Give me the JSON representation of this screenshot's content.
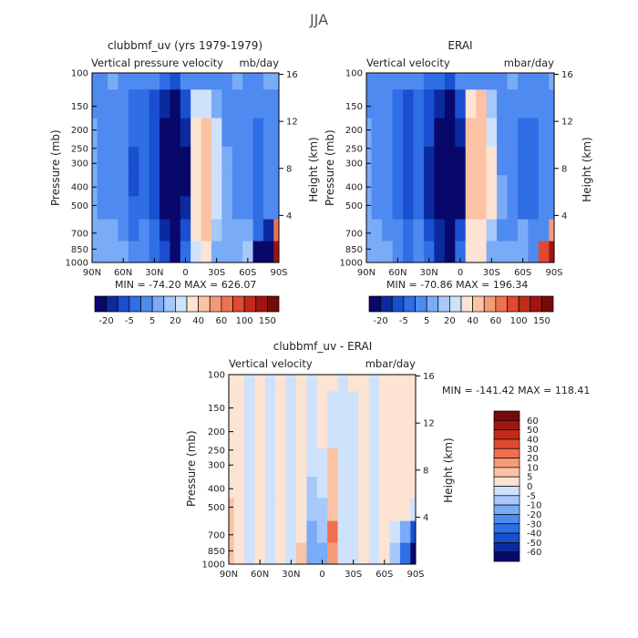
{
  "figure_title": "JJA",
  "panels": [
    {
      "title": "clubbmf_uv (yrs 1979-1979)",
      "subtitle_left": "Vertical pressure velocity",
      "subtitle_right": "mb/day",
      "minmax": "MIN = -74.20   MAX = 626.07"
    },
    {
      "title": "ERAI",
      "subtitle_left": "Vertical velocity",
      "subtitle_right": "mbar/day",
      "minmax": "MIN = -70.86   MAX = 196.34"
    },
    {
      "title": "clubbmf_uv - ERAI",
      "subtitle_left": "Vertical velocity",
      "subtitle_right": "mbar/day",
      "minmax": "MIN = -141.42   MAX = 118.41"
    }
  ],
  "axes": {
    "ylabel_left": "Pressure (mb)",
    "ylabel_right": "Height (km)",
    "pressure_ticks": [
      "100",
      "150",
      "200",
      "250",
      "300",
      "400",
      "500",
      "700",
      "850",
      "1000"
    ],
    "height_ticks": [
      "16",
      "12",
      "8",
      "4"
    ],
    "lat_ticks": [
      "90N",
      "60N",
      "30N",
      "0",
      "30S",
      "60S",
      "90S"
    ]
  },
  "colorbar_top": {
    "labels": [
      "-20",
      "-5",
      "5",
      "20",
      "40",
      "60",
      "100",
      "150"
    ],
    "colors": [
      "#08086b",
      "#0c2aa0",
      "#1a4fd0",
      "#2f6ee5",
      "#4f8af0",
      "#7aabf6",
      "#a6c8fa",
      "#cfe2fc",
      "#fde3d2",
      "#fbc2a4",
      "#f79a78",
      "#f0714f",
      "#e04a30",
      "#c42a1c",
      "#a0150f",
      "#750a08"
    ]
  },
  "colorbar_diff": {
    "labels": [
      "60",
      "50",
      "40",
      "30",
      "20",
      "10",
      "5",
      "0",
      "-5",
      "-10",
      "-20",
      "-30",
      "-40",
      "-50",
      "-60"
    ],
    "colors": [
      "#750a08",
      "#a0150f",
      "#c42a1c",
      "#e04a30",
      "#f0714f",
      "#f79a78",
      "#fbc2a4",
      "#fde3d2",
      "#cfe2fc",
      "#a6c8fa",
      "#7aabf6",
      "#4f8af0",
      "#2f6ee5",
      "#1a4fd0",
      "#0c2aa0",
      "#08086b"
    ]
  },
  "chart_data": [
    {
      "type": "heatmap",
      "title": "clubbmf_uv (yrs 1979-1979)",
      "subtitle": "Vertical pressure velocity",
      "units": "mb/day",
      "xlabel": "",
      "ylabel": "Pressure (mb)",
      "ylabel_right": "Height (km)",
      "x_ticks": [
        "90N",
        "60N",
        "30N",
        "0",
        "30S",
        "60S",
        "90S"
      ],
      "y_ticks": [
        100,
        150,
        200,
        250,
        300,
        400,
        500,
        700,
        850,
        1000
      ],
      "y_scale": "log",
      "ylim": [
        1000,
        100
      ],
      "min": -74.2,
      "max": 626.07,
      "x": [
        -90,
        -80,
        -70,
        -60,
        -50,
        -40,
        -30,
        -20,
        -10,
        0,
        10,
        20,
        30,
        40,
        50,
        60,
        70,
        80,
        90
      ],
      "y": [
        100,
        150,
        200,
        300,
        400,
        500,
        700,
        850,
        1000
      ],
      "z": [
        [
          -12,
          -14,
          -10,
          -12,
          -14,
          -12,
          -15,
          -18,
          -22,
          -14,
          -12,
          -12,
          -13,
          -11,
          -9,
          -12,
          -12,
          -10,
          -10
        ],
        [
          -12,
          -14,
          -12,
          -15,
          -20,
          -18,
          -22,
          -28,
          -40,
          -25,
          0,
          4,
          -8,
          -12,
          -12,
          -14,
          -14,
          -12,
          -12
        ],
        [
          -10,
          -12,
          -12,
          -15,
          -20,
          -18,
          -22,
          -32,
          -50,
          -30,
          5,
          10,
          0,
          -12,
          -14,
          -15,
          -16,
          -14,
          -12
        ],
        [
          -10,
          -12,
          -12,
          -15,
          -22,
          -18,
          -25,
          -35,
          -55,
          -35,
          8,
          12,
          3,
          -10,
          -14,
          -15,
          -18,
          -14,
          -12
        ],
        [
          -10,
          -12,
          -12,
          -15,
          -22,
          -18,
          -25,
          -35,
          -60,
          -35,
          8,
          12,
          4,
          -8,
          -14,
          -15,
          -18,
          -14,
          -12
        ],
        [
          -10,
          -12,
          -12,
          -14,
          -20,
          -16,
          -22,
          -32,
          -58,
          -30,
          8,
          10,
          3,
          -8,
          -12,
          -12,
          -16,
          -14,
          -12
        ],
        [
          -8,
          -10,
          -10,
          -12,
          -18,
          -14,
          -20,
          -28,
          -50,
          -22,
          6,
          12,
          -4,
          -10,
          -10,
          -8,
          -18,
          -30,
          30
        ],
        [
          -6,
          -8,
          -8,
          -10,
          -15,
          -12,
          -18,
          -24,
          -40,
          -18,
          4,
          6,
          -6,
          -8,
          -8,
          -5,
          -40,
          -60,
          80
        ],
        [
          -6,
          -8,
          -8,
          -10,
          -15,
          -12,
          -18,
          -24,
          -40,
          -18,
          4,
          6,
          -6,
          -8,
          -8,
          -5,
          -40,
          -60,
          80
        ]
      ]
    },
    {
      "type": "heatmap",
      "title": "ERAI",
      "subtitle": "Vertical velocity",
      "units": "mbar/day",
      "xlabel": "",
      "ylabel": "Pressure (mb)",
      "ylabel_right": "Height (km)",
      "x_ticks": [
        "90N",
        "60N",
        "30N",
        "0",
        "30S",
        "60S",
        "90S"
      ],
      "y_ticks": [
        100,
        150,
        200,
        250,
        300,
        400,
        500,
        700,
        850,
        1000
      ],
      "y_scale": "log",
      "ylim": [
        1000,
        100
      ],
      "min": -70.86,
      "max": 196.34,
      "x": [
        -90,
        -80,
        -70,
        -60,
        -50,
        -40,
        -30,
        -20,
        -10,
        0,
        10,
        20,
        30,
        40,
        50,
        60,
        70,
        80,
        90
      ],
      "y": [
        100,
        150,
        200,
        300,
        400,
        500,
        700,
        850,
        1000
      ],
      "z": [
        [
          -12,
          -14,
          -12,
          -12,
          -14,
          -12,
          -16,
          -20,
          -22,
          -14,
          -12,
          -12,
          -14,
          -13,
          -10,
          -12,
          -12,
          -12,
          -10
        ],
        [
          -12,
          -14,
          -14,
          -16,
          -22,
          -18,
          -25,
          -30,
          -45,
          -25,
          5,
          10,
          -5,
          -14,
          -14,
          -15,
          -15,
          -12,
          -12
        ],
        [
          -10,
          -12,
          -14,
          -16,
          -22,
          -18,
          -25,
          -35,
          -55,
          -30,
          10,
          15,
          3,
          -12,
          -15,
          -16,
          -18,
          -14,
          -12
        ],
        [
          -10,
          -12,
          -14,
          -18,
          -24,
          -18,
          -28,
          -38,
          -60,
          -35,
          12,
          18,
          6,
          -12,
          -15,
          -18,
          -20,
          -14,
          -12
        ],
        [
          -10,
          -12,
          -14,
          -18,
          -24,
          -18,
          -28,
          -40,
          -62,
          -35,
          12,
          18,
          6,
          -10,
          -15,
          -18,
          -20,
          -15,
          -12
        ],
        [
          -10,
          -12,
          -14,
          -16,
          -22,
          -16,
          -26,
          -36,
          -60,
          -32,
          12,
          16,
          5,
          -10,
          -14,
          -16,
          -18,
          -14,
          -12
        ],
        [
          -8,
          -10,
          -12,
          -14,
          -20,
          -14,
          -22,
          -30,
          -55,
          -25,
          8,
          8,
          -4,
          -12,
          -12,
          -10,
          -15,
          -12,
          20
        ],
        [
          -6,
          -8,
          -10,
          -12,
          -16,
          -12,
          -20,
          -26,
          -45,
          -20,
          5,
          5,
          -8,
          -10,
          -10,
          -8,
          -12,
          40,
          90
        ],
        [
          -6,
          -8,
          -10,
          -12,
          -16,
          -12,
          -20,
          -26,
          -45,
          -20,
          5,
          5,
          -8,
          -10,
          -10,
          -8,
          -12,
          40,
          90
        ]
      ]
    },
    {
      "type": "heatmap",
      "title": "clubbmf_uv - ERAI",
      "subtitle": "Vertical velocity",
      "units": "mbar/day",
      "xlabel": "",
      "ylabel": "Pressure (mb)",
      "ylabel_right": "Height (km)",
      "x_ticks": [
        "90N",
        "60N",
        "30N",
        "0",
        "30S",
        "60S",
        "90S"
      ],
      "y_ticks": [
        100,
        150,
        200,
        250,
        300,
        400,
        500,
        700,
        850,
        1000
      ],
      "y_scale": "log",
      "ylim": [
        1000,
        100
      ],
      "min": -141.42,
      "max": 118.41,
      "x": [
        -90,
        -80,
        -70,
        -60,
        -50,
        -40,
        -30,
        -20,
        -10,
        0,
        10,
        20,
        30,
        40,
        50,
        60,
        70,
        80,
        90
      ],
      "y": [
        100,
        150,
        200,
        300,
        400,
        500,
        700,
        850,
        1000
      ],
      "z": [
        [
          2,
          1,
          -1,
          2,
          -2,
          1,
          -1,
          2,
          -1,
          2,
          1,
          -2,
          1,
          2,
          -1,
          2,
          1,
          2,
          1
        ],
        [
          3,
          2,
          -2,
          2,
          -3,
          2,
          -2,
          3,
          -3,
          2,
          -2,
          -4,
          -2,
          3,
          -2,
          3,
          1,
          2,
          2
        ],
        [
          3,
          2,
          -3,
          2,
          -3,
          2,
          -2,
          4,
          -4,
          2,
          -4,
          -5,
          -3,
          3,
          -2,
          3,
          1,
          2,
          2
        ],
        [
          4,
          2,
          -3,
          2,
          -3,
          2,
          -2,
          4,
          -5,
          -3,
          5,
          -5,
          -2,
          3,
          -2,
          3,
          1,
          2,
          2
        ],
        [
          4,
          2,
          -3,
          2,
          -3,
          2,
          -2,
          4,
          -6,
          -4,
          6,
          -5,
          -2,
          3,
          -2,
          3,
          1,
          2,
          2
        ],
        [
          5,
          2,
          -3,
          2,
          -3,
          2,
          -2,
          3,
          -8,
          -6,
          8,
          -4,
          -2,
          3,
          -2,
          2,
          1,
          2,
          -2
        ],
        [
          6,
          2,
          -3,
          2,
          -3,
          2,
          -2,
          4,
          -12,
          -10,
          25,
          -3,
          -2,
          2,
          -2,
          2,
          -5,
          -15,
          -45
        ],
        [
          8,
          3,
          -3,
          3,
          -2,
          3,
          -2,
          5,
          -15,
          -14,
          15,
          -3,
          -2,
          2,
          -2,
          2,
          -8,
          -40,
          -70
        ],
        [
          8,
          3,
          -3,
          3,
          -2,
          3,
          -2,
          5,
          -15,
          -14,
          15,
          -3,
          -2,
          2,
          -2,
          2,
          -8,
          -40,
          -70
        ]
      ]
    }
  ]
}
